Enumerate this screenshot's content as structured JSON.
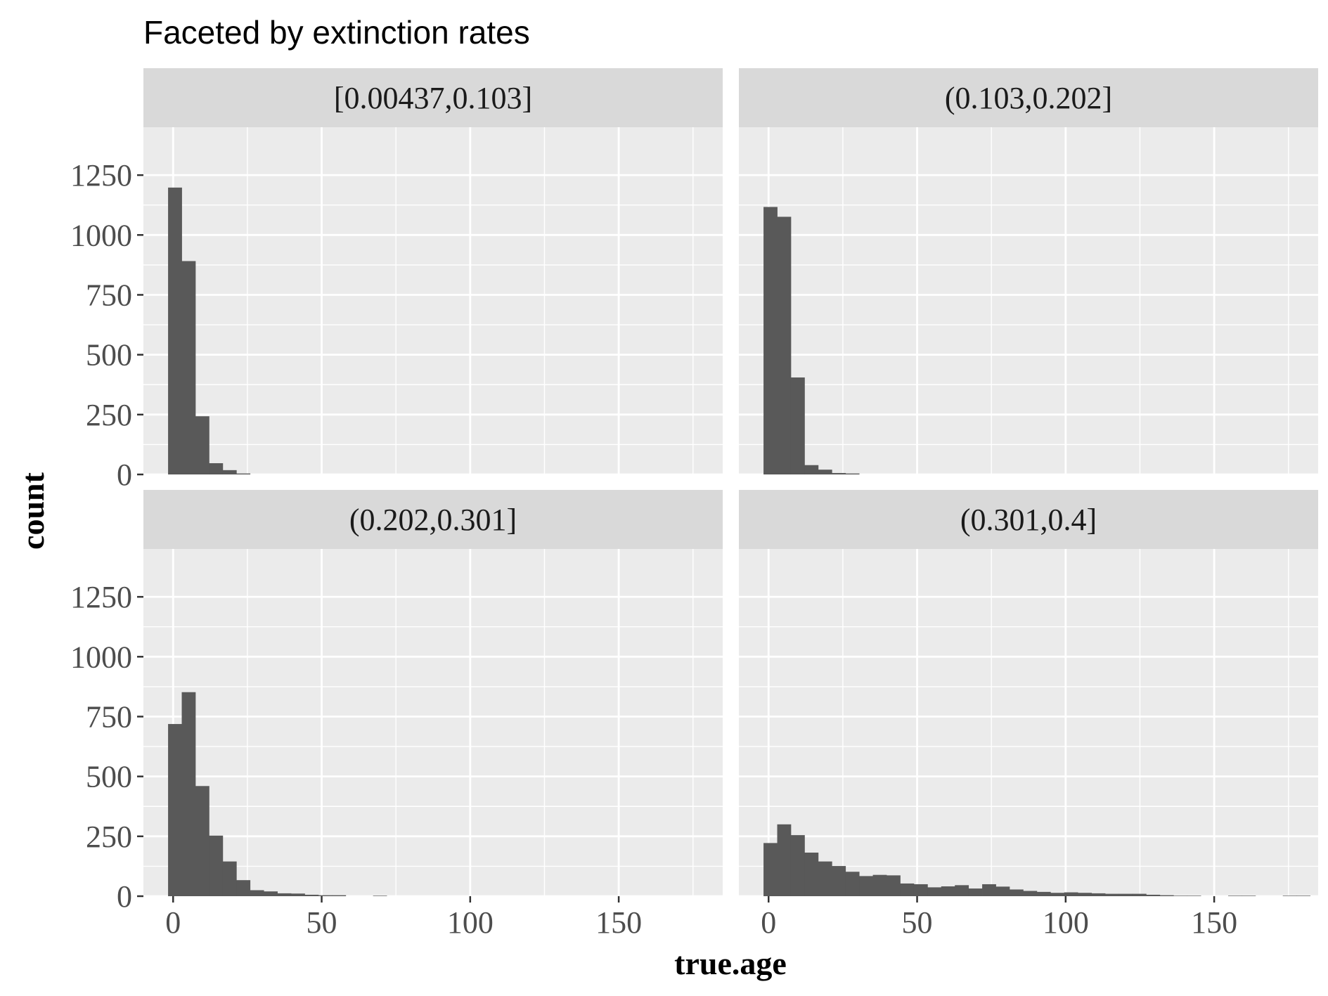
{
  "chart_data": {
    "type": "bar",
    "title": "Faceted by extinction rates",
    "xlabel": "true.age",
    "ylabel": "count",
    "xlim": [
      -10,
      185
    ],
    "ylim": [
      0,
      1450
    ],
    "x_ticks": [
      0,
      50,
      100,
      150
    ],
    "y_ticks": [
      0,
      250,
      500,
      750,
      1000,
      1250
    ],
    "bin_width": 4.6,
    "first_bin_start": -1.7,
    "panel_background": "#EBEBEB",
    "strip_background": "#D9D9D9",
    "bar_color": "#595959",
    "facets": [
      {
        "label": "[0.00437,0.103]",
        "values": [
          1198,
          891,
          243,
          47,
          18,
          4
        ]
      },
      {
        "label": "(0.103,0.202]",
        "values": [
          1117,
          1076,
          405,
          39,
          20,
          6,
          4
        ]
      },
      {
        "label": "(0.202,0.301]",
        "values": [
          719,
          852,
          460,
          253,
          145,
          67,
          25,
          20,
          12,
          11,
          6,
          4,
          4,
          0,
          0,
          2
        ]
      },
      {
        "label": "(0.301,0.4]",
        "values": [
          222,
          300,
          255,
          182,
          145,
          126,
          102,
          84,
          89,
          87,
          53,
          50,
          37,
          41,
          46,
          32,
          50,
          40,
          28,
          22,
          18,
          14,
          16,
          14,
          12,
          10,
          10,
          10,
          6,
          4,
          2,
          2,
          0,
          0,
          2,
          2,
          0,
          0,
          2,
          2,
          0
        ]
      }
    ]
  }
}
